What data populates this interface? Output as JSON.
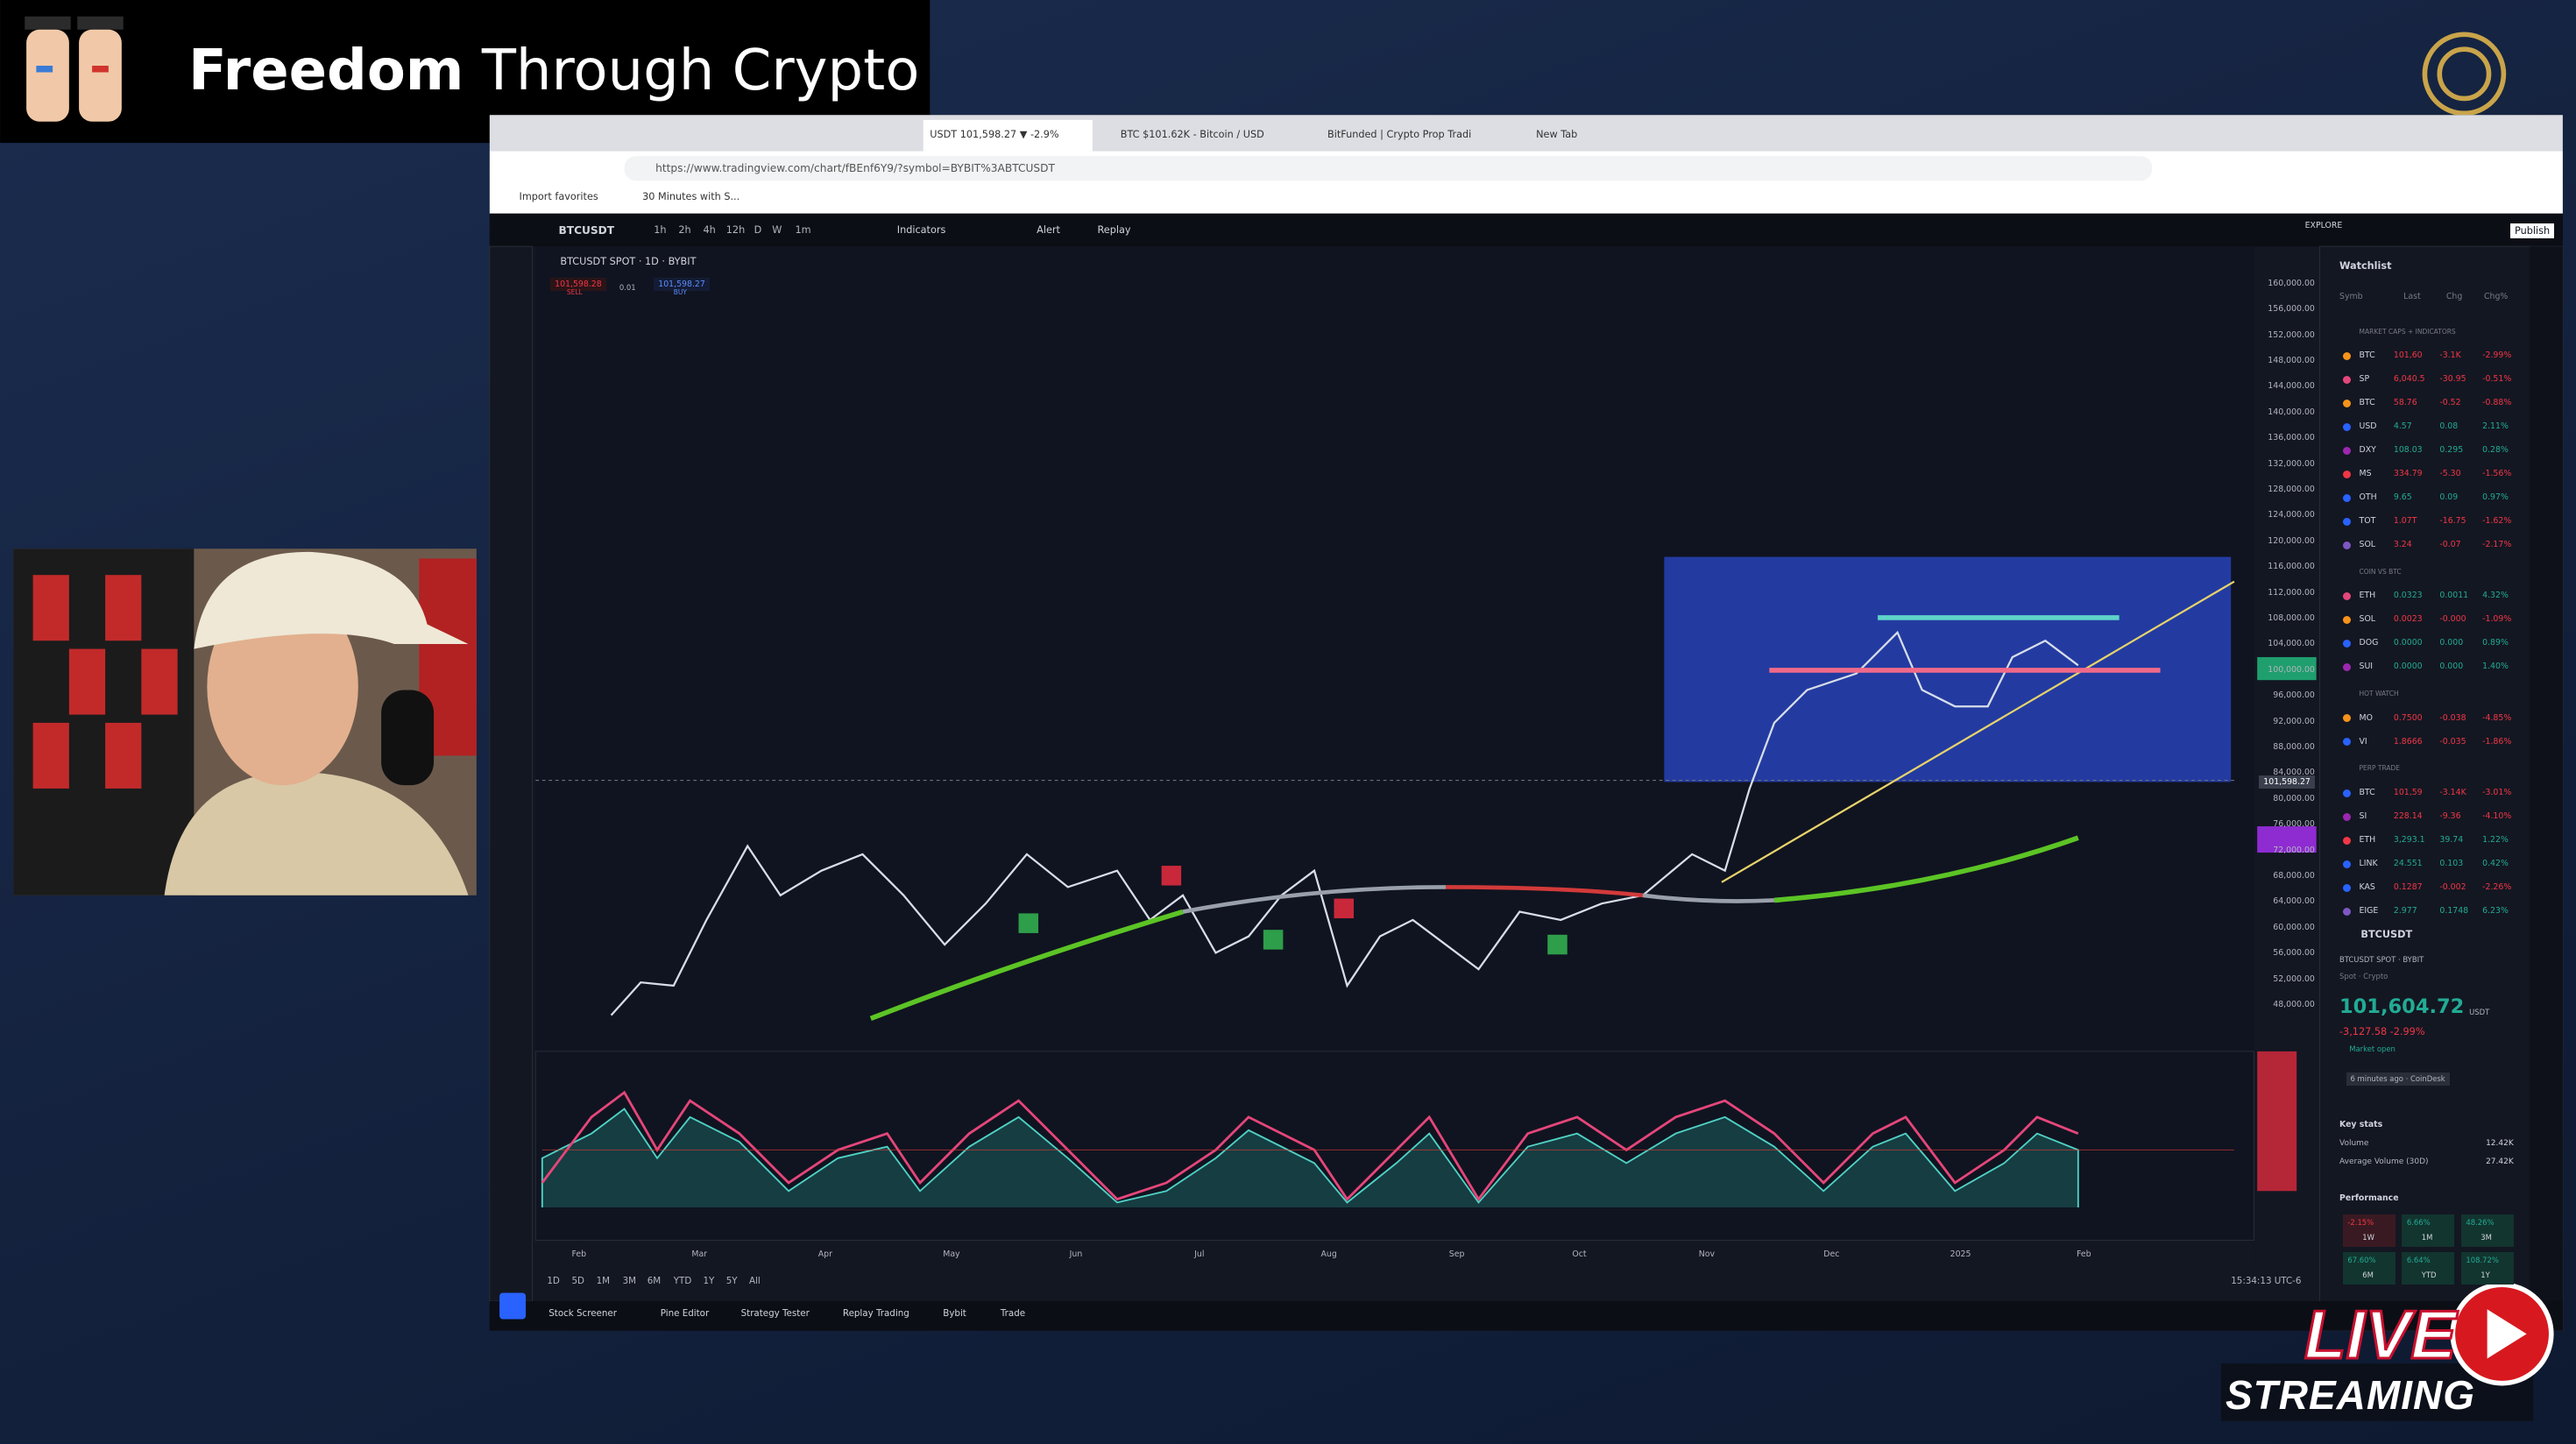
{
  "stream": {
    "brand_bold": "Freedom",
    "brand_rest": "Through Crypto",
    "live": "LIVE",
    "streaming": "STREAMING"
  },
  "browser": {
    "tabs": [
      "USDT 101,598.27 ▼ -2.9%",
      "BTC $101.62K - Bitcoin / USD",
      "BitFunded | Crypto Prop Tradi",
      "New Tab"
    ],
    "url": "https://www.tradingview.com/chart/fBEnf6Y9/?symbol=BYBIT%3ABTCUSDT",
    "bookmarks": [
      "Import favorites",
      "30 Minutes with S..."
    ]
  },
  "toolbar": {
    "symbol": "BTCUSDT",
    "intervals": [
      "1h",
      "2h",
      "4h",
      "12h",
      "D",
      "W",
      "1m"
    ],
    "buttons": [
      "Indicators",
      "Alert",
      "Replay"
    ],
    "explore": "EXPLORE",
    "publish": "Publish"
  },
  "chart": {
    "legend": "BTCUSDT SPOT · 1D · BYBIT",
    "sell_price": "101,598.28",
    "sell": "SELL",
    "spread": "0.01",
    "buy_price": "101,598.27",
    "buy": "BUY",
    "price_axis": [
      "160,000.00",
      "156,000.00",
      "152,000.00",
      "148,000.00",
      "144,000.00",
      "140,000.00",
      "136,000.00",
      "132,000.00",
      "128,000.00",
      "124,000.00",
      "120,000.00",
      "116,000.00",
      "112,000.00",
      "108,000.00",
      "104,000.00",
      "100,000.00",
      "96,000.00",
      "92,000.00",
      "88,000.00",
      "84,000.00",
      "80,000.00",
      "76,000.00",
      "72,000.00",
      "68,000.00",
      "64,000.00",
      "60,000.00",
      "56,000.00",
      "52,000.00",
      "48,000.00"
    ],
    "current_price": "101,598.27",
    "time_axis": [
      "Feb",
      "Mar",
      "Apr",
      "May",
      "Jun",
      "Jul",
      "Aug",
      "Sep",
      "Oct",
      "Nov",
      "Dec",
      "2025",
      "Feb"
    ],
    "ranges": [
      "1D",
      "5D",
      "1M",
      "3M",
      "6M",
      "YTD",
      "1Y",
      "5Y",
      "All"
    ],
    "clock": "15:34:13 UTC-6"
  },
  "bottom_tabs": [
    "Stock Screener",
    "Pine Editor",
    "Strategy Tester",
    "Replay Trading",
    "Bybit",
    "Trade"
  ],
  "watchlist": {
    "title": "Watchlist",
    "columns": [
      "Symb",
      "Last",
      "Chg",
      "Chg%"
    ],
    "sections": [
      {
        "name": "MARKET CAPS + INDICATORS",
        "rows": [
          [
            "BTC",
            "101,60",
            "-3.1K",
            "-2.99%"
          ],
          [
            "SP",
            "6,040.5",
            "-30.95",
            "-0.51%"
          ],
          [
            "BTC",
            "58.76",
            "-0.52",
            "-0.88%"
          ],
          [
            "USD",
            "4.57",
            "0.08",
            "2.11%"
          ],
          [
            "DXY",
            "108.03",
            "0.295",
            "0.28%"
          ],
          [
            "MS",
            "334.79",
            "-5.30",
            "-1.56%"
          ],
          [
            "OTH",
            "9.65",
            "0.09",
            "0.97%"
          ],
          [
            "TOT",
            "1.07T",
            "-16.75",
            "-1.62%"
          ],
          [
            "SOL",
            "3.24",
            "-0.07",
            "-2.17%"
          ]
        ]
      },
      {
        "name": "COIN VS BTC",
        "rows": [
          [
            "ETH",
            "0.0323",
            "0.0011",
            "4.32%"
          ],
          [
            "SOL",
            "0.0023",
            "-0.000",
            "-1.09%"
          ],
          [
            "DOG",
            "0.0000",
            "0.000",
            "0.89%"
          ],
          [
            "SUI",
            "0.0000",
            "0.000",
            "1.40%"
          ]
        ]
      },
      {
        "name": "HOT WATCH",
        "rows": [
          [
            "MO",
            "0.7500",
            "-0.038",
            "-4.85%"
          ],
          [
            "VI",
            "1.8666",
            "-0.035",
            "-1.86%"
          ]
        ]
      },
      {
        "name": "PERP TRADE",
        "rows": [
          [
            "BTC",
            "101,59",
            "-3.14K",
            "-3.01%"
          ],
          [
            "SI",
            "228.14",
            "-9.36",
            "-4.10%"
          ],
          [
            "ETH",
            "3,293.1",
            "39.74",
            "1.22%"
          ],
          [
            "LINK",
            "24.551",
            "0.103",
            "0.42%"
          ],
          [
            "KAS",
            "0.1287",
            "-0.002",
            "-2.26%"
          ],
          [
            "EIGE",
            "2.977",
            "0.1748",
            "6.23%"
          ]
        ]
      }
    ],
    "symbol": "BTCUSDT",
    "exchange": "BTCUSDT SPOT · BYBIT",
    "market": "Spot · Crypto",
    "price": "101,604.72",
    "currency": "USDT",
    "change": "-3,127.58 -2.99%",
    "status": "Market open",
    "news": "6 minutes ago · CoinDesk",
    "key_stats": "Key stats",
    "stats": [
      [
        "Volume",
        "12.42K"
      ],
      [
        "Average Volume (30D)",
        "27.42K"
      ]
    ],
    "performance": "Performance",
    "perf": [
      [
        "-2.15%",
        "1W"
      ],
      [
        "6.66%",
        "1M"
      ],
      [
        "48.26%",
        "3M"
      ],
      [
        "67.60%",
        "6M"
      ],
      [
        "6.64%",
        "YTD"
      ],
      [
        "108.72%",
        "1Y"
      ]
    ]
  }
}
